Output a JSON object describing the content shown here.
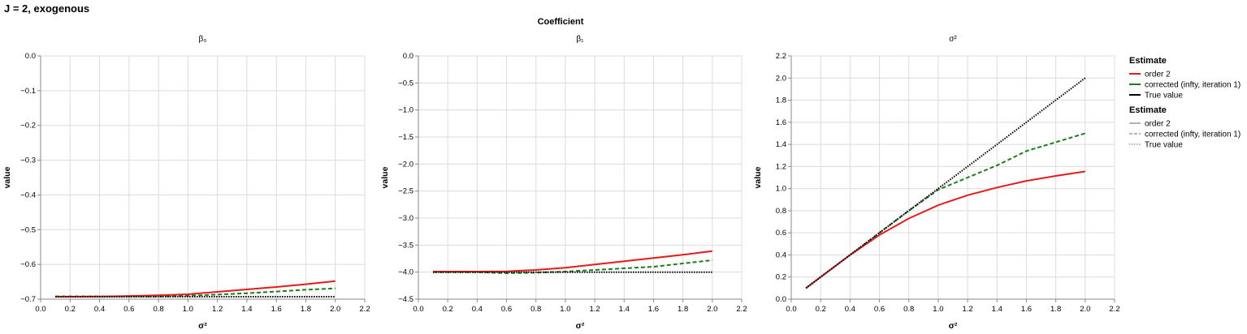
{
  "title": "J = 2, exogenous",
  "column_title": "Coefficient",
  "colors": {
    "order 2": "#e41a1c",
    "corrected (infty, iteration 1)": "#1a7f1a",
    "True value": "#000000",
    "grid": "#dcdcdc",
    "axis": "#888888",
    "legend_dash": "#888888"
  },
  "legend_color": {
    "title": "Estimate",
    "entries": [
      "order 2",
      "corrected (infty, iteration 1)",
      "True value"
    ]
  },
  "legend_dash": {
    "title": "Estimate",
    "entries": [
      "order 2",
      "corrected (infty, iteration 1)",
      "True value"
    ]
  },
  "chart_data": [
    {
      "type": "line",
      "panel_title": "β₀",
      "xlabel": "σ²",
      "ylabel": "value",
      "xlim": [
        0,
        2.2
      ],
      "ylim": [
        -0.7,
        0.0
      ],
      "xticks": [
        0.0,
        0.2,
        0.4,
        0.6,
        0.8,
        1.0,
        1.2,
        1.4,
        1.6,
        1.8,
        2.0,
        2.2
      ],
      "yticks": [
        0.0,
        -0.1,
        -0.2,
        -0.3,
        -0.4,
        -0.5,
        -0.6,
        -0.7
      ],
      "grid": true,
      "x": [
        0.1,
        0.2,
        0.4,
        0.6,
        0.8,
        1.0,
        1.2,
        1.4,
        1.6,
        1.8,
        2.0
      ],
      "series": [
        {
          "name": "order 2",
          "dash": "solid",
          "values": [
            -0.693,
            -0.693,
            -0.6925,
            -0.691,
            -0.689,
            -0.686,
            -0.679,
            -0.672,
            -0.665,
            -0.657,
            -0.648
          ]
        },
        {
          "name": "corrected (infty, iteration 1)",
          "dash": "dashed",
          "values": [
            -0.692,
            -0.692,
            -0.692,
            -0.692,
            -0.692,
            -0.69,
            -0.687,
            -0.683,
            -0.678,
            -0.673,
            -0.669
          ]
        },
        {
          "name": "True value",
          "dash": "dotted",
          "values": [
            -0.6931,
            -0.6931,
            -0.6931,
            -0.6931,
            -0.6931,
            -0.6931,
            -0.6931,
            -0.6931,
            -0.6931,
            -0.6931,
            -0.6931
          ]
        }
      ]
    },
    {
      "type": "line",
      "panel_title": "β₁",
      "xlabel": "σ²",
      "ylabel": "value",
      "xlim": [
        0,
        2.2
      ],
      "ylim": [
        -4.5,
        0.0
      ],
      "xticks": [
        0.0,
        0.2,
        0.4,
        0.6,
        0.8,
        1.0,
        1.2,
        1.4,
        1.6,
        1.8,
        2.0,
        2.2
      ],
      "yticks": [
        0.0,
        -0.5,
        -1.0,
        -1.5,
        -2.0,
        -2.5,
        -3.0,
        -3.5,
        -4.0,
        -4.5
      ],
      "grid": true,
      "x": [
        0.1,
        0.2,
        0.4,
        0.6,
        0.8,
        1.0,
        1.2,
        1.4,
        1.6,
        1.8,
        2.0
      ],
      "series": [
        {
          "name": "order 2",
          "dash": "solid",
          "values": [
            -3.99,
            -3.99,
            -3.99,
            -3.985,
            -3.96,
            -3.92,
            -3.86,
            -3.8,
            -3.74,
            -3.68,
            -3.61
          ]
        },
        {
          "name": "corrected (infty, iteration 1)",
          "dash": "dashed",
          "values": [
            -4.0,
            -4.0,
            -4.0,
            -4.02,
            -4.01,
            -3.99,
            -3.96,
            -3.93,
            -3.9,
            -3.84,
            -3.78
          ]
        },
        {
          "name": "True value",
          "dash": "dotted",
          "values": [
            -4.0,
            -4.0,
            -4.0,
            -4.0,
            -4.0,
            -4.0,
            -4.0,
            -4.0,
            -4.0,
            -4.0,
            -4.0
          ]
        }
      ]
    },
    {
      "type": "line",
      "panel_title": "σ²",
      "xlabel": "σ²",
      "ylabel": "value",
      "xlim": [
        0,
        2.2
      ],
      "ylim": [
        0,
        2.2
      ],
      "xticks": [
        0.0,
        0.2,
        0.4,
        0.6,
        0.8,
        1.0,
        1.2,
        1.4,
        1.6,
        1.8,
        2.0,
        2.2
      ],
      "yticks": [
        0.0,
        0.2,
        0.4,
        0.6,
        0.8,
        1.0,
        1.2,
        1.4,
        1.6,
        1.8,
        2.0,
        2.2
      ],
      "grid": true,
      "x": [
        0.1,
        0.2,
        0.4,
        0.6,
        0.8,
        1.0,
        1.2,
        1.4,
        1.6,
        1.8,
        2.0
      ],
      "series": [
        {
          "name": "order 2",
          "dash": "solid",
          "values": [
            0.1,
            0.2,
            0.4,
            0.58,
            0.73,
            0.85,
            0.94,
            1.01,
            1.07,
            1.115,
            1.155
          ]
        },
        {
          "name": "corrected (infty, iteration 1)",
          "dash": "dashed",
          "values": [
            0.1,
            0.2,
            0.4,
            0.6,
            0.8,
            0.99,
            1.1,
            1.21,
            1.34,
            1.42,
            1.5
          ]
        },
        {
          "name": "True value",
          "dash": "dotted",
          "values": [
            0.1,
            0.2,
            0.4,
            0.6,
            0.8,
            1.0,
            1.2,
            1.4,
            1.6,
            1.8,
            2.0
          ]
        }
      ]
    }
  ]
}
